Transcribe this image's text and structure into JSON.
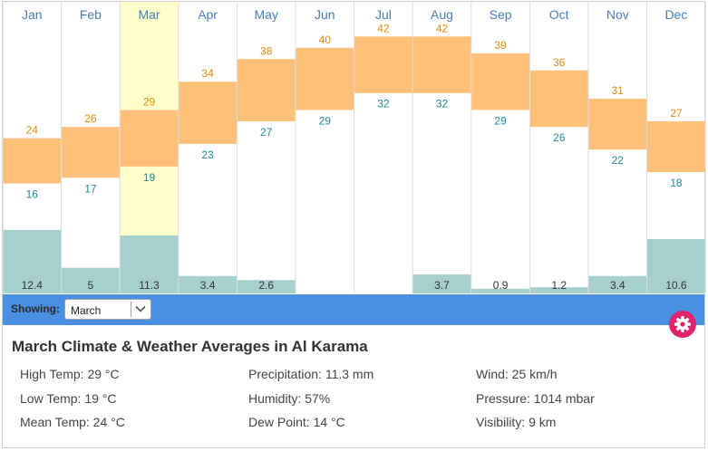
{
  "chart_data": {
    "type": "bar",
    "categories": [
      "Jan",
      "Feb",
      "Mar",
      "Apr",
      "May",
      "Jun",
      "Jul",
      "Aug",
      "Sep",
      "Oct",
      "Nov",
      "Dec"
    ],
    "highlighted": "Mar",
    "series": [
      {
        "values": [
          24,
          26,
          29,
          34,
          38,
          40,
          42,
          42,
          39,
          36,
          31,
          27
        ]
      },
      {
        "values": [
          16,
          17,
          19,
          23,
          27,
          29,
          32,
          32,
          29,
          26,
          22,
          18
        ]
      },
      {
        "values": [
          "12.4",
          "5",
          "11.3",
          "3.4",
          "2.6",
          null,
          null,
          "3.7",
          "0.9",
          "1.2",
          "3.4",
          "10.6"
        ]
      }
    ],
    "colors": {
      "temp_bar": "#ffc17a",
      "high_text": "#e38a07",
      "low_text": "#1f8a99",
      "precip_bar": "#a7cfcd",
      "highlight": "#ffffcc",
      "month_text": "#4a7db8",
      "grid": "#dddddd"
    }
  },
  "toolbar": {
    "showing_label": "Showing:",
    "selected_month": "March"
  },
  "info": {
    "title": "March Climate & Weather Averages in Al Karama",
    "stats": [
      "High Temp: 29 °C",
      "Low Temp: 19 °C",
      "Mean Temp: 24 °C",
      "Precipitation: 11.3 mm",
      "Humidity: 57%",
      "Dew Point: 14 °C",
      "Wind: 25 km/h",
      "Pressure: 1014 mbar",
      "Visibility: 9 km"
    ]
  },
  "icons": {
    "settings": "gear-icon",
    "dropdown": "chevron-down-icon"
  }
}
